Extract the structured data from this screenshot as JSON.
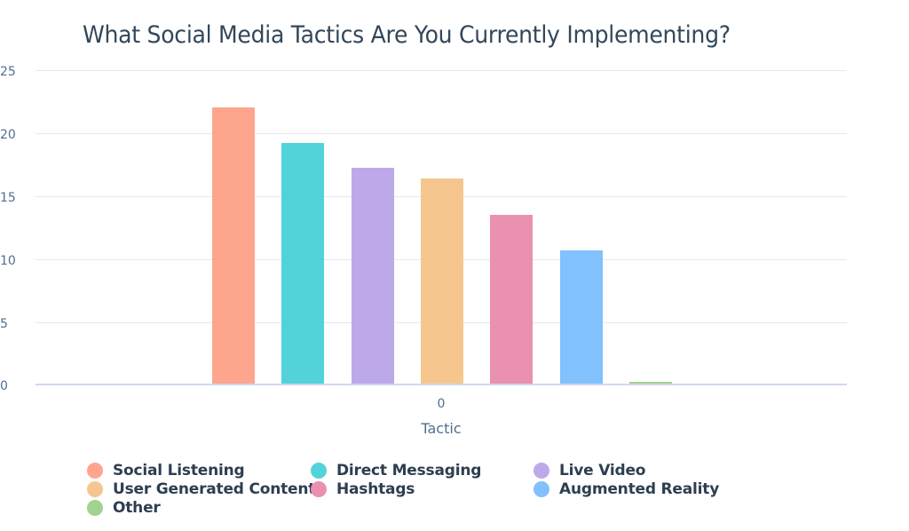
{
  "chart_data": {
    "type": "bar",
    "title": "What Social Media Tactics Are You Currently Implementing?",
    "xlabel": "Tactic",
    "ylabel": "",
    "categories": [
      "0"
    ],
    "x_tick_labels": [
      "0"
    ],
    "y_ticks": [
      0,
      5,
      10,
      15,
      20,
      25
    ],
    "ylim": [
      0,
      25
    ],
    "grid": true,
    "legend_position": "bottom",
    "series": [
      {
        "name": "Social Listening",
        "values": [
          22
        ],
        "color": "#fea58e"
      },
      {
        "name": "Direct Messaging",
        "values": [
          19.2
        ],
        "color": "#51d3d9"
      },
      {
        "name": "Live Video",
        "values": [
          17.2
        ],
        "color": "#bda9ea"
      },
      {
        "name": "User Generated Content",
        "values": [
          16.4
        ],
        "color": "#f5c78e"
      },
      {
        "name": "Hashtags",
        "values": [
          13.5
        ],
        "color": "#ea90b1"
      },
      {
        "name": "Augmented Reality",
        "values": [
          10.7
        ],
        "color": "#81c1fd"
      },
      {
        "name": "Other",
        "values": [
          0.2
        ],
        "color": "#a2d28f"
      }
    ]
  },
  "y_tick_labels": [
    "25",
    "20",
    "15",
    "10",
    "5",
    "0"
  ]
}
